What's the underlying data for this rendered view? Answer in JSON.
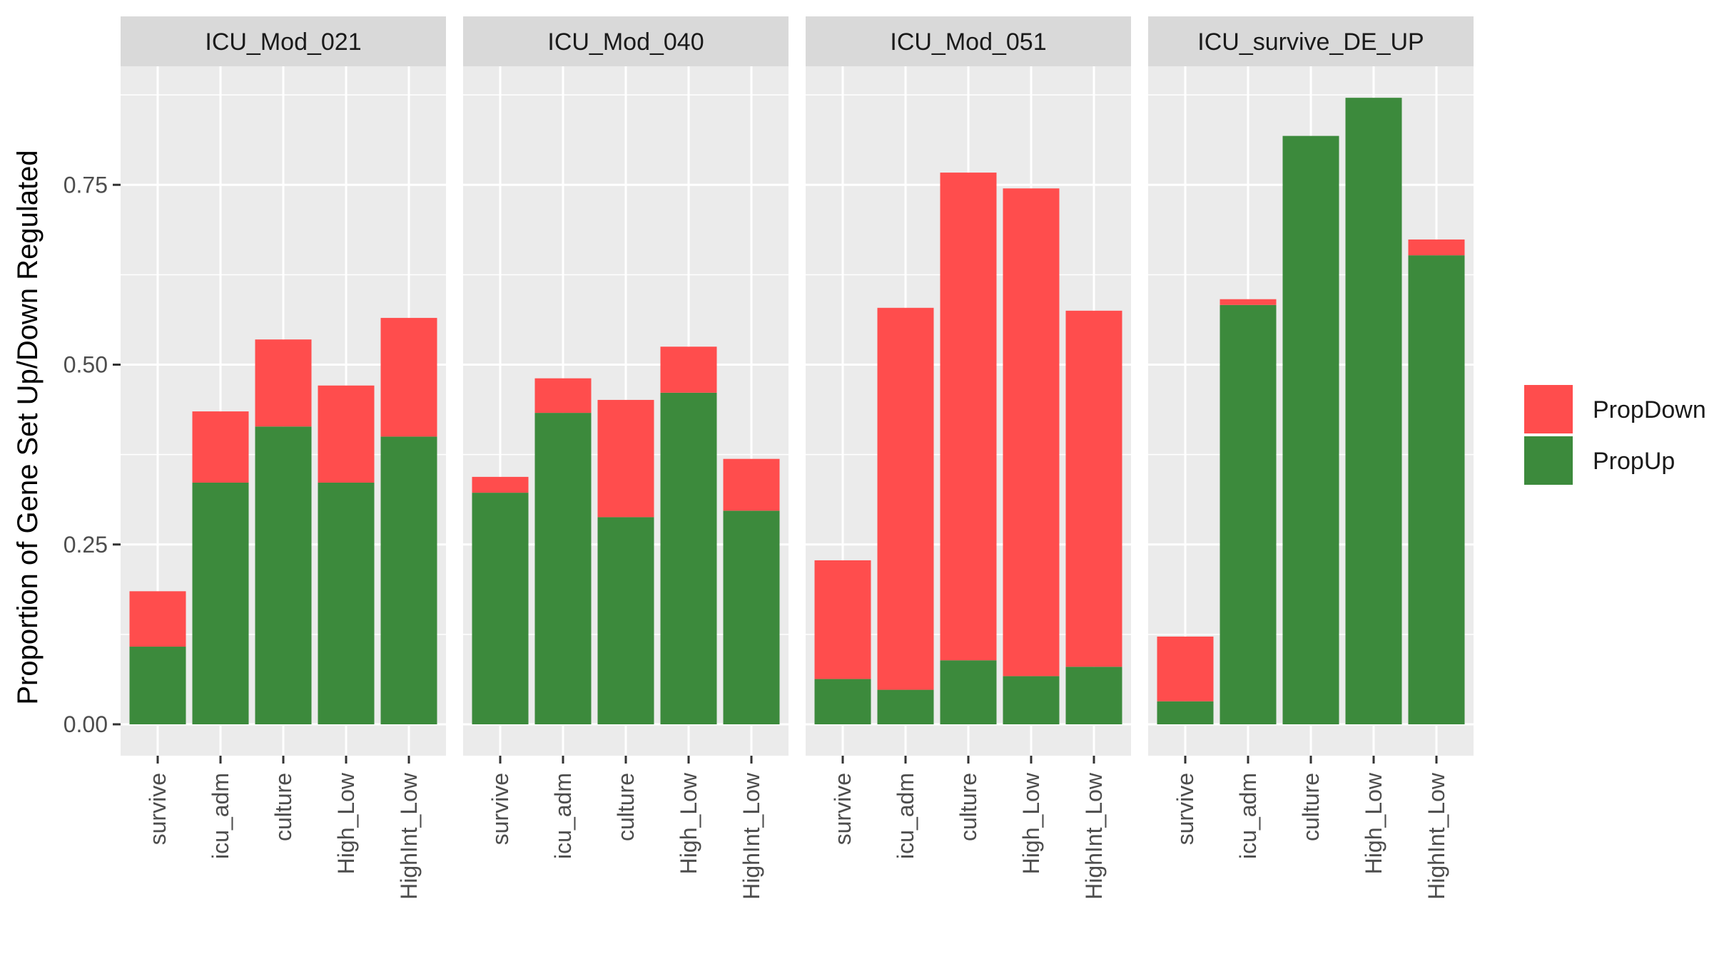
{
  "chart_data": {
    "type": "bar",
    "stacked": true,
    "faceted": true,
    "ylabel": "Proportion of Gene Set Up/Down Regulated",
    "xlabel": "",
    "ylim": [
      -0.04,
      0.9
    ],
    "yticks": [
      0.0,
      0.25,
      0.5,
      0.75
    ],
    "ytick_labels": [
      "0.00",
      "0.25",
      "0.50",
      "0.75"
    ],
    "grid": true,
    "legend_position": "right",
    "categories": [
      "survive",
      "icu_adm",
      "culture",
      "High_Low",
      "HighInt_Low"
    ],
    "legend": [
      {
        "name": "PropDown",
        "color": "#ff4d4d"
      },
      {
        "name": "PropUp",
        "color": "#3c8a3c"
      }
    ],
    "colors": {
      "PropDown": "#ff4d4d",
      "PropUp": "#3c8a3c",
      "panel_bg": "#ebebeb",
      "strip_bg": "#d9d9d9",
      "grid": "#ffffff"
    },
    "panels": [
      {
        "title": "ICU_Mod_021",
        "series": [
          {
            "name": "PropUp",
            "values": [
              0.108,
              0.336,
              0.414,
              0.336,
              0.4
            ]
          },
          {
            "name": "PropDown",
            "values": [
              0.077,
              0.099,
              0.121,
              0.135,
              0.165
            ]
          }
        ]
      },
      {
        "title": "ICU_Mod_040",
        "series": [
          {
            "name": "PropUp",
            "values": [
              0.322,
              0.433,
              0.288,
              0.461,
              0.297
            ]
          },
          {
            "name": "PropDown",
            "values": [
              0.022,
              0.048,
              0.163,
              0.064,
              0.072
            ]
          }
        ]
      },
      {
        "title": "ICU_Mod_051",
        "series": [
          {
            "name": "PropUp",
            "values": [
              0.063,
              0.048,
              0.089,
              0.067,
              0.08
            ]
          },
          {
            "name": "PropDown",
            "values": [
              0.165,
              0.531,
              0.678,
              0.678,
              0.495
            ]
          }
        ]
      },
      {
        "title": "ICU_survive_DE_UP",
        "series": [
          {
            "name": "PropUp",
            "values": [
              0.032,
              0.583,
              0.818,
              0.871,
              0.652
            ]
          },
          {
            "name": "PropDown",
            "values": [
              0.09,
              0.008,
              0.0,
              0.0,
              0.022
            ]
          }
        ]
      }
    ]
  }
}
